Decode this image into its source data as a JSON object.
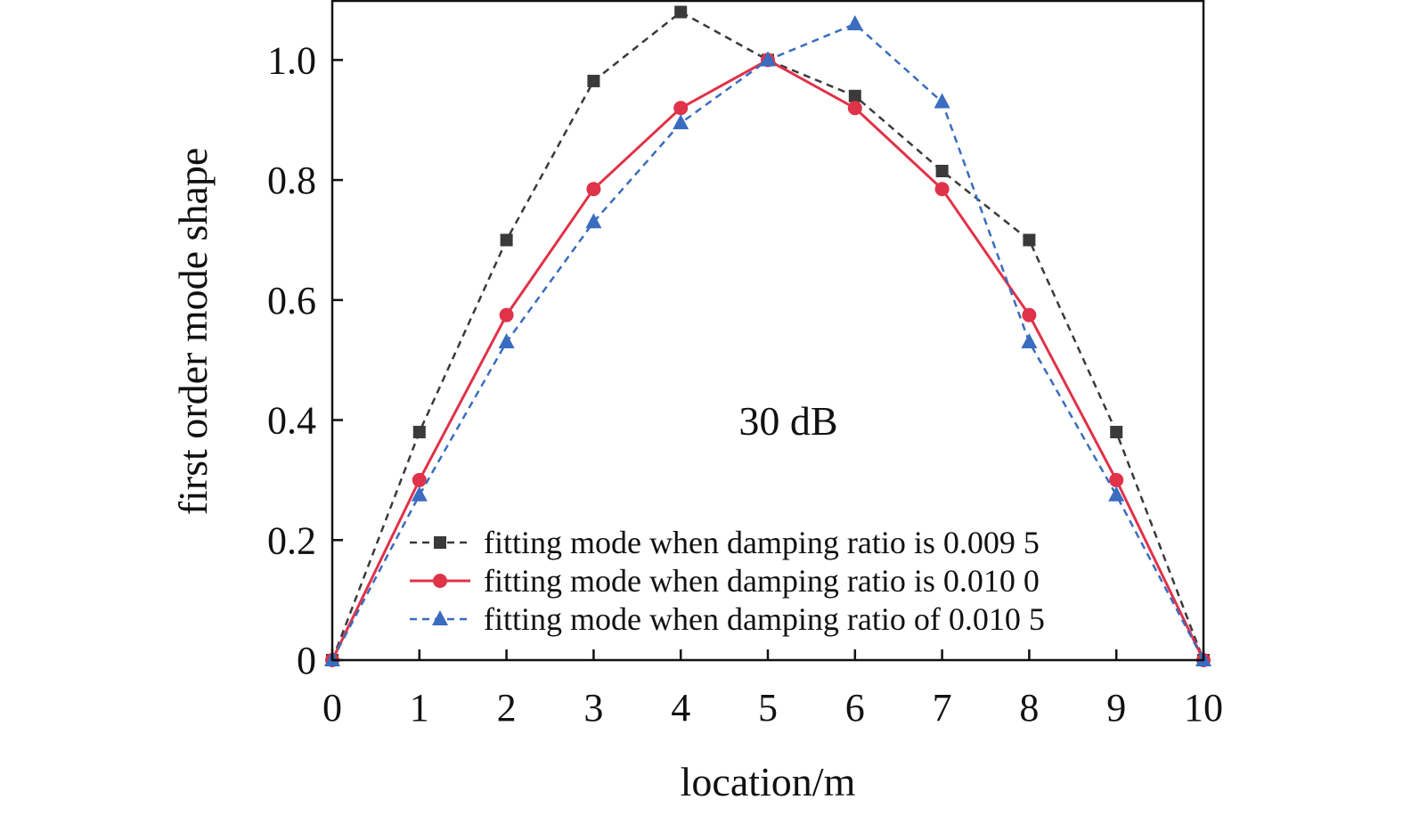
{
  "chart_data": {
    "type": "line",
    "xlabel": "location/m",
    "ylabel": "first order mode shape",
    "xlim": [
      0,
      10
    ],
    "ylim": [
      0,
      1.1
    ],
    "x": [
      0,
      1,
      2,
      3,
      4,
      5,
      6,
      7,
      8,
      9,
      10
    ],
    "xticks": [
      0,
      1,
      2,
      3,
      4,
      5,
      6,
      7,
      8,
      9,
      10
    ],
    "xtick_labels": [
      "0",
      "1",
      "2",
      "3",
      "4",
      "5",
      "6",
      "7",
      "8",
      "9",
      "10"
    ],
    "yticks": [
      0,
      0.2,
      0.4,
      0.6,
      0.8,
      1.0
    ],
    "ytick_labels": [
      "0",
      "0.2",
      "0.4",
      "0.6",
      "0.8",
      "1.0"
    ],
    "annotation": "30 dB",
    "grid": false,
    "legend_position": "bottom-center",
    "series": [
      {
        "name": "fitting mode when damping ratio is 0.009 5",
        "values": [
          0,
          0.38,
          0.7,
          0.965,
          1.08,
          1.0,
          0.94,
          0.815,
          0.7,
          0.38,
          0
        ],
        "color": "#3a3a3a",
        "line_style": "dashed",
        "marker": "square"
      },
      {
        "name": "fitting mode when damping ratio is 0.010 0",
        "values": [
          0,
          0.3,
          0.575,
          0.785,
          0.92,
          1.0,
          0.92,
          0.785,
          0.575,
          0.3,
          0
        ],
        "color": "#e03248",
        "line_style": "solid",
        "marker": "circle"
      },
      {
        "name": "fitting mode when damping ratio of 0.010 5",
        "values": [
          0,
          0.275,
          0.53,
          0.73,
          0.895,
          1.0,
          1.06,
          0.93,
          0.53,
          0.275,
          0
        ],
        "color": "#3a6cc0",
        "line_style": "dashed",
        "marker": "triangle"
      }
    ]
  }
}
